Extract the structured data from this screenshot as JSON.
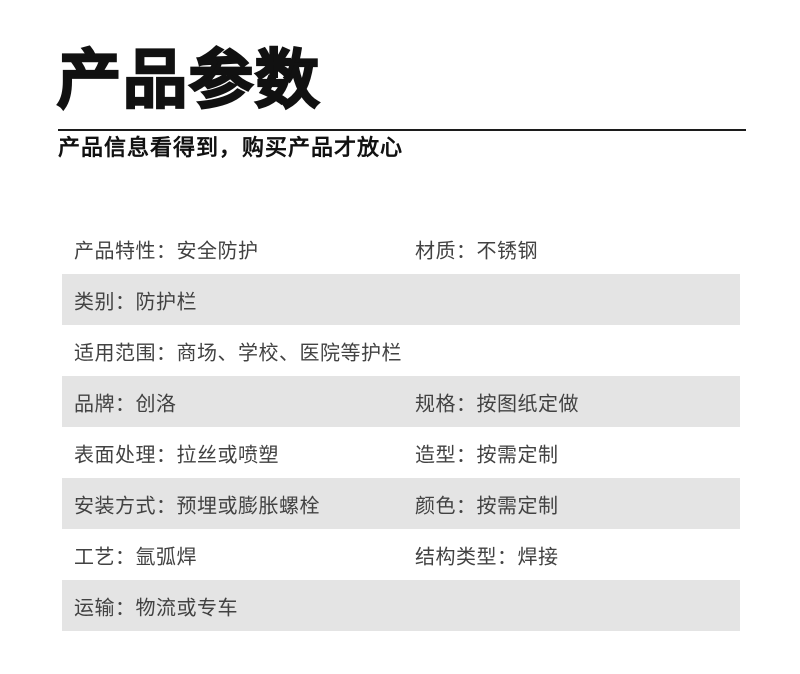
{
  "header": {
    "title": "产品参数",
    "subtitle": "产品信息看得到，购买产品才放心"
  },
  "table": {
    "separator": "：",
    "rows": [
      {
        "shaded": false,
        "cells": [
          {
            "label": "产品特性",
            "value": "安全防护"
          },
          {
            "label": "材质",
            "value": "不锈钢"
          }
        ]
      },
      {
        "shaded": true,
        "cells": [
          {
            "label": "类别",
            "value": "防护栏"
          }
        ]
      },
      {
        "shaded": false,
        "cells": [
          {
            "label": "适用范围",
            "value": "商场、学校、医院等护栏"
          }
        ]
      },
      {
        "shaded": true,
        "cells": [
          {
            "label": "品牌",
            "value": "创洛"
          },
          {
            "label": "规格",
            "value": "按图纸定做"
          }
        ]
      },
      {
        "shaded": false,
        "cells": [
          {
            "label": "表面处理",
            "value": "拉丝或喷塑"
          },
          {
            "label": "造型",
            "value": "按需定制"
          }
        ]
      },
      {
        "shaded": true,
        "cells": [
          {
            "label": "安装方式",
            "value": "预埋或膨胀螺栓"
          },
          {
            "label": "颜色",
            "value": "按需定制"
          }
        ]
      },
      {
        "shaded": false,
        "cells": [
          {
            "label": "工艺",
            "value": "氩弧焊"
          },
          {
            "label": "结构类型",
            "value": "焊接"
          }
        ]
      },
      {
        "shaded": true,
        "cells": [
          {
            "label": "运输",
            "value": "物流或专车"
          }
        ]
      }
    ],
    "colors": {
      "shaded_row": "#e4e4e4",
      "text": "#424242"
    }
  },
  "colors": {
    "background": "#ffffff",
    "title": "#111111",
    "rule": "#1c1c1c"
  }
}
